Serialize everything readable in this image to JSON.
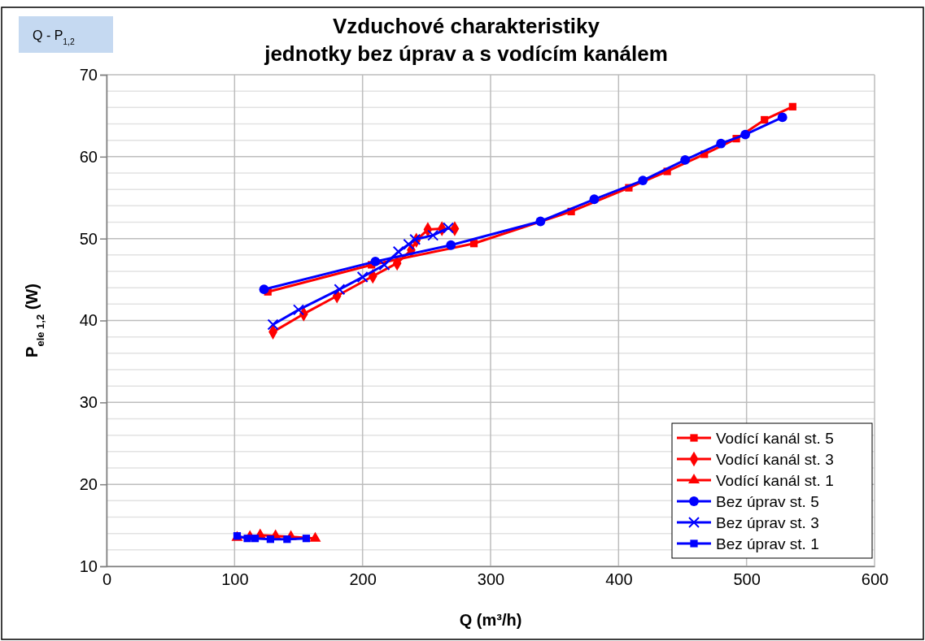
{
  "chart_data": {
    "type": "line",
    "title": "Vzduchové charakteristiky\njednotky bez úprav a s vodícím kanálem",
    "xlabel": "Q (m³/h)",
    "ylabel": "P$_{ele 1,2}$ (W)",
    "annotations": [
      "Q - P$_{1,2}$"
    ],
    "xlim": [
      0,
      600
    ],
    "xticks": [
      0,
      100,
      200,
      300,
      400,
      500,
      600
    ],
    "ylim": [
      10,
      70
    ],
    "yticks": [
      10,
      {
        "value": 12,
        "label": null
      },
      {
        "value": 14,
        "label": null
      },
      {
        "value": 16,
        "label": null
      },
      {
        "value": 18,
        "label": null
      },
      20,
      {
        "value": 22,
        "label": null
      },
      {
        "value": 24,
        "label": null
      },
      {
        "value": 26,
        "label": null
      },
      {
        "value": 28,
        "label": null
      },
      30,
      {
        "value": 32,
        "label": null
      },
      {
        "value": 34,
        "label": null
      },
      {
        "value": 36,
        "label": null
      },
      {
        "value": 38,
        "label": null
      },
      40,
      {
        "value": 42,
        "label": null
      },
      {
        "value": 44,
        "label": null
      },
      {
        "value": 46,
        "label": null
      },
      {
        "value": 48,
        "label": null
      },
      50,
      {
        "value": 52,
        "label": null
      },
      {
        "value": 54,
        "label": null
      },
      {
        "value": 56,
        "label": null
      },
      {
        "value": 58,
        "label": null
      },
      60,
      {
        "value": 62,
        "label": null
      },
      {
        "value": 64,
        "label": null
      },
      {
        "value": 66,
        "label": null
      },
      {
        "value": 68,
        "label": null
      },
      70
    ],
    "grid": true,
    "legend": "bottom right",
    "line_style": "solid",
    "series": [
      {
        "name": "Vodící kanál st. 5",
        "color": "#ff0000",
        "marker": "square",
        "x": [
          126,
          207,
          287,
          363,
          408,
          438,
          467,
          492,
          514,
          536
        ],
        "values": [
          43.5,
          46.8,
          49.4,
          53.3,
          56.2,
          58.2,
          60.3,
          62.2,
          64.5,
          66.1
        ]
      },
      {
        "name": "Vodící kanál st. 3",
        "color": "#ff0000",
        "marker": "diamond",
        "x": [
          130,
          154,
          180,
          208,
          227,
          238,
          242,
          251,
          262,
          272
        ],
        "values": [
          38.6,
          40.8,
          43.0,
          45.4,
          47.0,
          48.6,
          49.8,
          51.1,
          51.2,
          51.2
        ]
      },
      {
        "name": "Vodící kanál st. 1",
        "color": "#ff0000",
        "marker": "triangle",
        "x": [
          102,
          112,
          120,
          132,
          144,
          163
        ],
        "values": [
          13.5,
          13.6,
          13.8,
          13.7,
          13.6,
          13.4
        ]
      },
      {
        "name": "Bez úprav st. 5",
        "color": "#0000ff",
        "marker": "circle",
        "x": [
          123,
          210,
          269,
          339,
          381,
          419,
          452,
          480,
          499,
          528
        ],
        "values": [
          43.8,
          47.2,
          49.2,
          52.1,
          54.8,
          57.1,
          59.6,
          61.6,
          62.7,
          64.8
        ]
      },
      {
        "name": "Bez úprav st. 3",
        "color": "#0000ff",
        "marker": "cross",
        "x": [
          130,
          150,
          182,
          200,
          217,
          228,
          236,
          241,
          255,
          267
        ],
        "values": [
          39.5,
          41.3,
          43.8,
          45.3,
          46.8,
          48.4,
          49.3,
          49.9,
          50.4,
          51.3
        ]
      },
      {
        "name": "Bez úprav st. 1",
        "color": "#0000ff",
        "marker": "square",
        "x": [
          102,
          110,
          116,
          128,
          141,
          156
        ],
        "values": [
          13.7,
          13.4,
          13.4,
          13.3,
          13.3,
          13.4
        ]
      }
    ]
  }
}
